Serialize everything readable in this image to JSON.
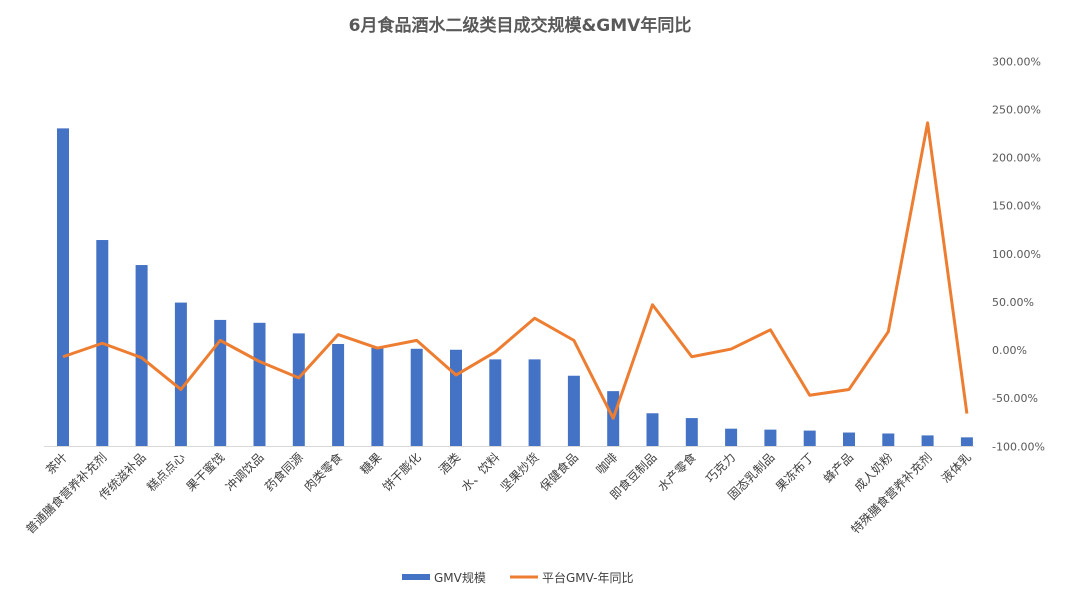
{
  "chart_data": {
    "type": "bar+line",
    "title": "6月食品酒水二级类目成交规模&GMV年同比",
    "categories": [
      "茶叶",
      "普通膳食营养补充剂",
      "传统滋补品",
      "糕点点心",
      "果干蜜饯",
      "冲调饮品",
      "药食同源",
      "肉类零食",
      "糖果",
      "饼干膨化",
      "酒类",
      "水、饮料",
      "坚果炒货",
      "保健食品",
      "咖啡",
      "即食豆制品",
      "水产零食",
      "巧克力",
      "固态乳制品",
      "果冻布丁",
      "蜂产品",
      "成人奶粉",
      "特殊膳食营养补充剂",
      "液体乳"
    ],
    "series": [
      {
        "name": "GMV规模",
        "type": "bar",
        "axis": "primary (hidden, relative)",
        "color": "#4472C4",
        "values": [
          330,
          214,
          188,
          149,
          131,
          128,
          117,
          106,
          102,
          101,
          100,
          90,
          90,
          73,
          57,
          34,
          29,
          18,
          17,
          16,
          14,
          13,
          11,
          9
        ]
      },
      {
        "name": "平台GMV-年同比",
        "type": "line",
        "axis": "secondary",
        "unit": "%",
        "color": "#ED7D31",
        "values": [
          -7,
          7,
          -8,
          -41,
          10,
          -12,
          -29,
          16,
          2,
          10,
          -26,
          -2,
          33,
          10,
          -71,
          47,
          -7,
          1,
          21,
          -47,
          -41,
          19,
          236,
          -66
        ]
      }
    ],
    "y2_ticks": [
      "300.00%",
      "250.00%",
      "200.00%",
      "150.00%",
      "100.00%",
      "50.00%",
      "0.00%",
      "-50.00%",
      "-100.00%"
    ],
    "y2lim": [
      -100,
      300
    ],
    "grid": false,
    "legend": "bottom"
  }
}
